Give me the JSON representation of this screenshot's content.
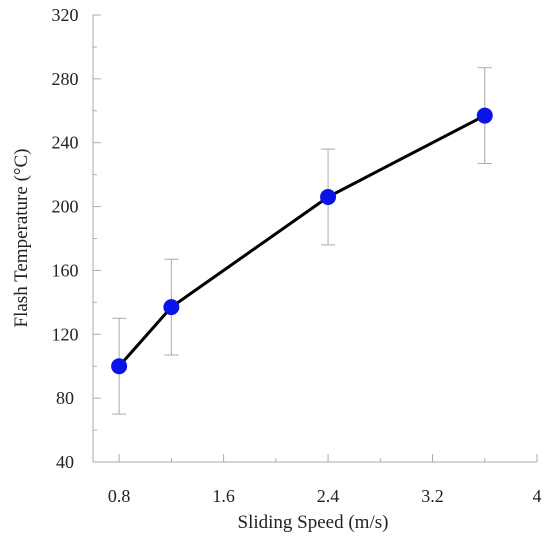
{
  "chart_data": {
    "type": "line",
    "title": "",
    "xlabel": "Sliding Speed (m/s)",
    "ylabel": "Flash Temperature (°C)",
    "xlim": [
      0.6,
      4.0
    ],
    "ylim": [
      40,
      320
    ],
    "x_ticks": [
      0.8,
      1.6,
      2.4,
      3.2,
      4
    ],
    "x_tick_labels": [
      "0.8",
      "1.6",
      "2.4",
      "3.2",
      "4"
    ],
    "y_ticks": [
      40,
      80,
      120,
      160,
      200,
      240,
      280,
      320
    ],
    "y_tick_labels": [
      "40",
      "80",
      "120",
      "160",
      "200",
      "240",
      "280",
      "320"
    ],
    "grid": false,
    "legend": "none",
    "series": [
      {
        "x": [
          0.8,
          1.2,
          2.4,
          3.6
        ],
        "y": [
          100,
          137,
          206,
          257
        ],
        "error": [
          30,
          30,
          30,
          30
        ],
        "line_color": "#000000",
        "marker_color": "#0a14e6"
      }
    ]
  }
}
